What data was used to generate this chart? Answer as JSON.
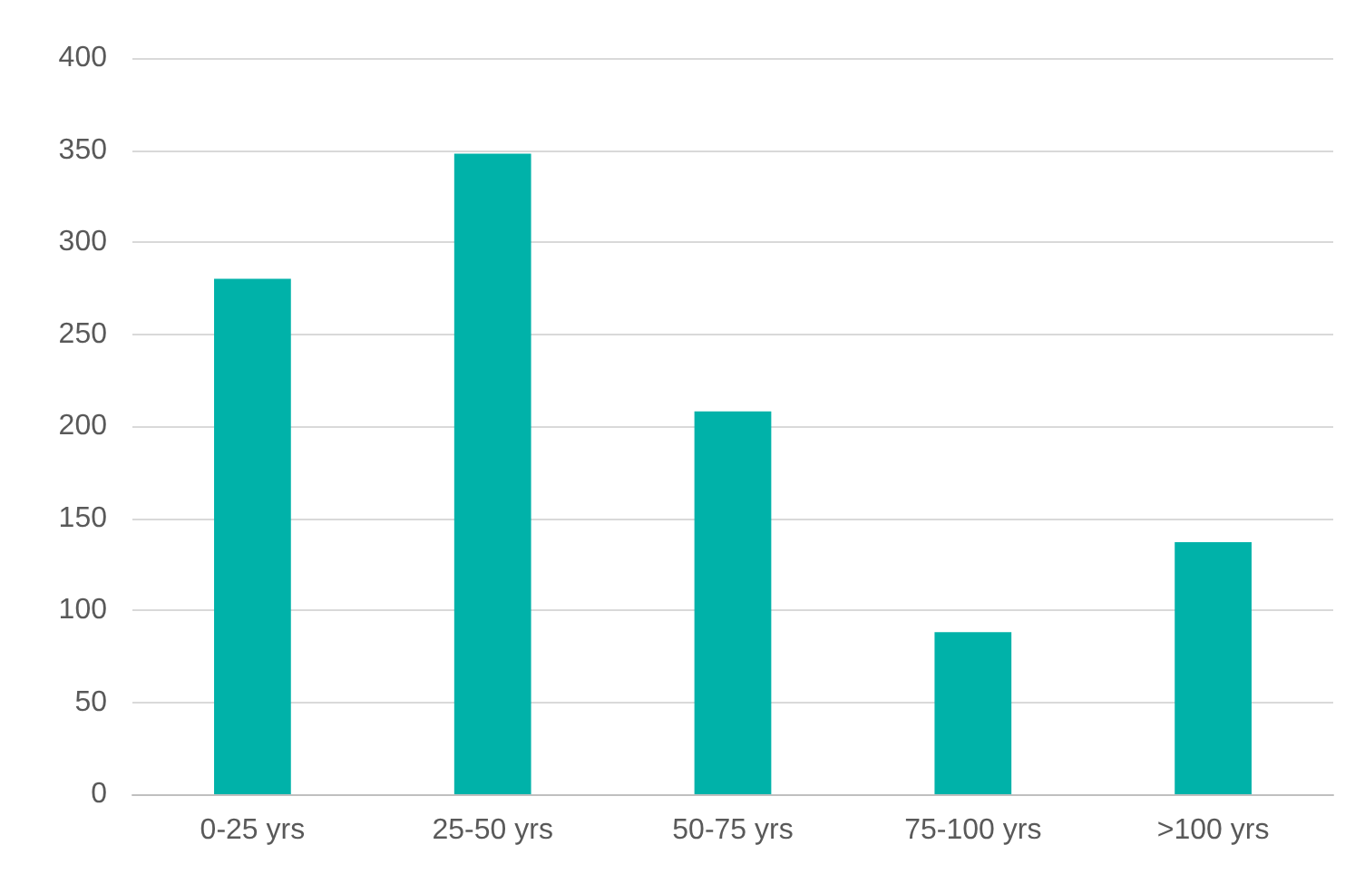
{
  "chart_data": {
    "type": "bar",
    "categories": [
      "0-25 yrs",
      "25-50 yrs",
      "50-75 yrs",
      "75-100 yrs",
      ">100 yrs"
    ],
    "values": [
      280,
      348,
      208,
      88,
      137
    ],
    "color": "#00b2a9",
    "ylim": [
      0,
      400
    ],
    "yticks": [
      0,
      50,
      100,
      150,
      200,
      250,
      300,
      350,
      400
    ],
    "grid": "y"
  }
}
